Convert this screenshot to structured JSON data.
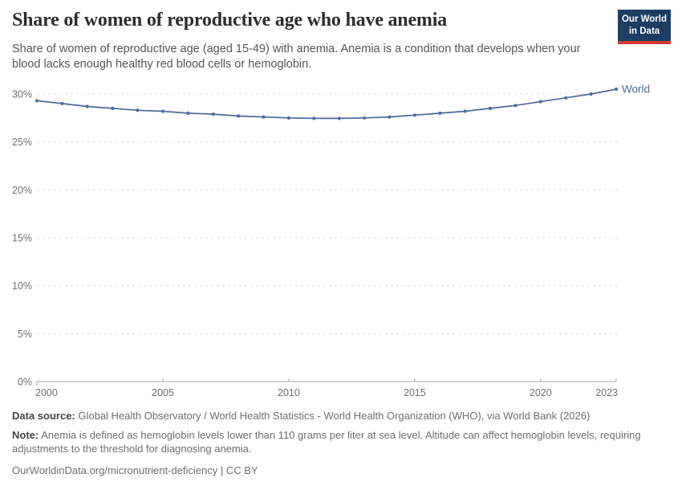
{
  "header": {
    "title": "Share of women of reproductive age who have anemia",
    "subtitle": "Share of women of reproductive age (aged 15-49) with anemia. Anemia is a condition that develops when your blood lacks enough healthy red blood cells or hemoglobin.",
    "logo": {
      "line1": "Our World",
      "line2": "in Data",
      "bg_color": "#1d3d63",
      "stripe_color": "#d13c32"
    }
  },
  "chart_data": {
    "type": "line",
    "title": "Share of women of reproductive age who have anemia",
    "xlabel": "",
    "ylabel": "",
    "xlim": [
      2000,
      2023
    ],
    "ylim": [
      0,
      30
    ],
    "yticks": [
      0,
      5,
      10,
      15,
      20,
      25,
      30
    ],
    "ytick_labels": [
      "0%",
      "5%",
      "10%",
      "15%",
      "20%",
      "25%",
      "30%"
    ],
    "xticks": [
      2000,
      2005,
      2010,
      2015,
      2020,
      2023
    ],
    "xtick_labels": [
      "2000",
      "2005",
      "2010",
      "2015",
      "2020",
      "2023"
    ],
    "grid": "horizontal-dashed",
    "legend_position": "end-of-line-label",
    "x": [
      2000,
      2001,
      2002,
      2003,
      2004,
      2005,
      2006,
      2007,
      2008,
      2009,
      2010,
      2011,
      2012,
      2013,
      2014,
      2015,
      2016,
      2017,
      2018,
      2019,
      2020,
      2021,
      2022,
      2023
    ],
    "series": [
      {
        "name": "World",
        "color": "#4c6a9c",
        "values": [
          29.3,
          29.0,
          28.7,
          28.5,
          28.3,
          28.2,
          28.0,
          27.9,
          27.7,
          27.6,
          27.5,
          27.45,
          27.45,
          27.5,
          27.6,
          27.8,
          28.0,
          28.2,
          28.5,
          28.8,
          29.2,
          29.6,
          30.0,
          30.5
        ]
      }
    ],
    "end_label": "World",
    "axis_color": "#a6a6a6",
    "grid_color": "#dcdcdc",
    "tick_label_color": "#6e6e6e"
  },
  "footer": {
    "data_source_label": "Data source:",
    "data_source_text": " Global Health Observatory / World Health Statistics - World Health Organization (WHO), via World Bank (2026)",
    "note_label": "Note:",
    "note_text": " Anemia is defined as hemoglobin levels lower than 110 grams per liter at sea level. Altitude can affect hemoglobin levels, requiring adjustments to the threshold for diagnosing anemia.",
    "url_line": "OurWorldinData.org/micronutrient-deficiency | CC BY"
  }
}
